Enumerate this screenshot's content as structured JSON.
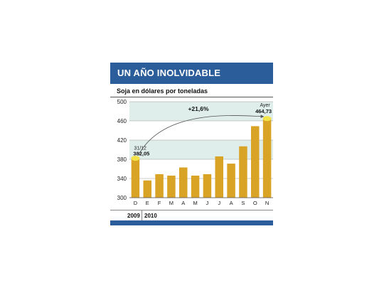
{
  "header": {
    "title": "UN AÑO INOLVIDABLE"
  },
  "chart_data": {
    "type": "bar",
    "title": "UN AÑO INOLVIDABLE",
    "subtitle": "Soja en dólares por toneladas",
    "categories": [
      "D",
      "E",
      "F",
      "M",
      "A",
      "M",
      "J",
      "J",
      "A",
      "S",
      "O",
      "N"
    ],
    "values": [
      382.05,
      336,
      349,
      346,
      363,
      346,
      349,
      386,
      371,
      407,
      449,
      464.73
    ],
    "ylim": [
      300,
      500
    ],
    "yticks": [
      300,
      340,
      380,
      420,
      460,
      500
    ],
    "bands": [
      [
        380,
        420
      ],
      [
        460,
        500
      ]
    ],
    "grid": true,
    "annotations": {
      "start_date": "31/12",
      "start_value": "382,05",
      "end_date": "Ayer",
      "end_value": "464,73",
      "change": "+21,6%"
    },
    "years": [
      "2009",
      "2010"
    ],
    "colors": {
      "bar": "#d9a326",
      "band": "#dfeeea",
      "highlight": "#f2e34b",
      "accent": "#2a5d9a"
    }
  }
}
